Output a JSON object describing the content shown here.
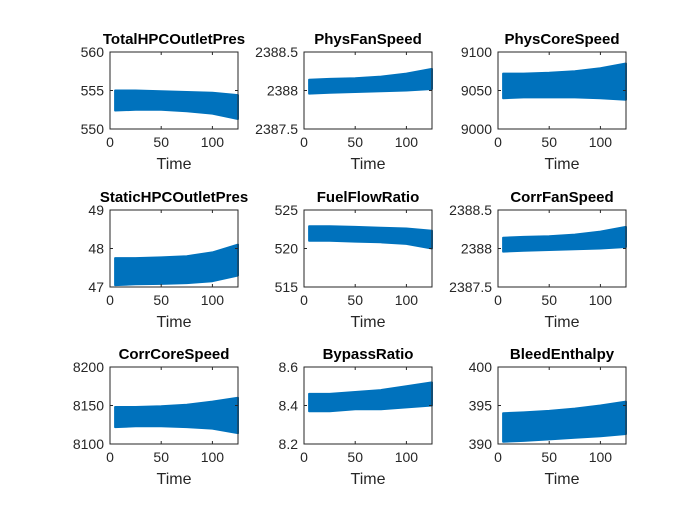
{
  "chart_data": [
    {
      "type": "area",
      "title": "TotalHPCOutletPres",
      "xlabel": "Time",
      "ylabel": "",
      "xlim": [
        0,
        125
      ],
      "ylim": [
        550,
        560
      ],
      "xticks": [
        0,
        50,
        100
      ],
      "yticks": [
        550,
        555,
        560
      ],
      "x": [
        5,
        25,
        50,
        75,
        100,
        125
      ],
      "band_low": [
        552.4,
        552.5,
        552.5,
        552.3,
        552.0,
        551.3
      ],
      "band_high": [
        555.0,
        555.0,
        554.9,
        554.8,
        554.7,
        554.4
      ],
      "color": "#0072BD"
    },
    {
      "type": "area",
      "title": "PhysFanSpeed",
      "xlabel": "Time",
      "ylabel": "",
      "xlim": [
        0,
        125
      ],
      "ylim": [
        2387.5,
        2388.5
      ],
      "xticks": [
        0,
        50,
        100
      ],
      "yticks": [
        2387.5,
        2388,
        2388.5
      ],
      "x": [
        5,
        25,
        50,
        75,
        100,
        125
      ],
      "band_low": [
        2387.96,
        2387.97,
        2387.98,
        2387.99,
        2388.0,
        2388.02
      ],
      "band_high": [
        2388.14,
        2388.15,
        2388.16,
        2388.18,
        2388.22,
        2388.28
      ],
      "color": "#0072BD"
    },
    {
      "type": "area",
      "title": "PhysCoreSpeed",
      "xlabel": "Time",
      "ylabel": "",
      "xlim": [
        0,
        125
      ],
      "ylim": [
        9000,
        9100
      ],
      "xticks": [
        0,
        50,
        100
      ],
      "yticks": [
        9000,
        9050,
        9100
      ],
      "x": [
        5,
        25,
        50,
        75,
        100,
        125
      ],
      "band_low": [
        9040,
        9041,
        9041,
        9041,
        9040,
        9038
      ],
      "band_high": [
        9072,
        9072,
        9073,
        9075,
        9079,
        9085
      ],
      "color": "#0072BD"
    },
    {
      "type": "area",
      "title": "StaticHPCOutletPres",
      "xlabel": "Time",
      "ylabel": "",
      "xlim": [
        0,
        125
      ],
      "ylim": [
        47,
        49
      ],
      "xticks": [
        0,
        50,
        100
      ],
      "yticks": [
        47,
        48,
        49
      ],
      "x": [
        5,
        25,
        50,
        75,
        100,
        125
      ],
      "band_low": [
        47.05,
        47.07,
        47.08,
        47.1,
        47.15,
        47.3
      ],
      "band_high": [
        47.75,
        47.75,
        47.77,
        47.8,
        47.9,
        48.1
      ],
      "color": "#0072BD"
    },
    {
      "type": "area",
      "title": "FuelFlowRatio",
      "xlabel": "Time",
      "ylabel": "",
      "xlim": [
        0,
        125
      ],
      "ylim": [
        515,
        525
      ],
      "xticks": [
        0,
        50,
        100
      ],
      "yticks": [
        515,
        520,
        525
      ],
      "x": [
        5,
        25,
        50,
        75,
        100,
        125
      ],
      "band_low": [
        521.0,
        521.0,
        520.9,
        520.8,
        520.6,
        520.0
      ],
      "band_high": [
        522.9,
        522.9,
        522.8,
        522.7,
        522.6,
        522.3
      ],
      "color": "#0072BD"
    },
    {
      "type": "area",
      "title": "CorrFanSpeed",
      "xlabel": "Time",
      "ylabel": "",
      "xlim": [
        0,
        125
      ],
      "ylim": [
        2387.5,
        2388.5
      ],
      "xticks": [
        0,
        50,
        100
      ],
      "yticks": [
        2387.5,
        2388,
        2388.5
      ],
      "x": [
        5,
        25,
        50,
        75,
        100,
        125
      ],
      "band_low": [
        2387.96,
        2387.97,
        2387.98,
        2387.99,
        2388.0,
        2388.02
      ],
      "band_high": [
        2388.14,
        2388.15,
        2388.16,
        2388.18,
        2388.22,
        2388.28
      ],
      "color": "#0072BD"
    },
    {
      "type": "area",
      "title": "CorrCoreSpeed",
      "xlabel": "Time",
      "ylabel": "",
      "xlim": [
        0,
        125
      ],
      "ylim": [
        8100,
        8200
      ],
      "xticks": [
        0,
        50,
        100
      ],
      "yticks": [
        8100,
        8150,
        8200
      ],
      "x": [
        5,
        25,
        50,
        75,
        100,
        125
      ],
      "band_low": [
        8122,
        8123,
        8123,
        8122,
        8120,
        8114
      ],
      "band_high": [
        8148,
        8148,
        8149,
        8151,
        8155,
        8160
      ],
      "color": "#0072BD"
    },
    {
      "type": "area",
      "title": "BypassRatio",
      "xlabel": "Time",
      "ylabel": "",
      "xlim": [
        0,
        125
      ],
      "ylim": [
        8.2,
        8.6
      ],
      "xticks": [
        0,
        50,
        100
      ],
      "yticks": [
        8.2,
        8.4,
        8.6
      ],
      "x": [
        5,
        25,
        50,
        75,
        100,
        125
      ],
      "band_low": [
        8.37,
        8.37,
        8.38,
        8.38,
        8.39,
        8.4
      ],
      "band_high": [
        8.46,
        8.46,
        8.47,
        8.48,
        8.5,
        8.52
      ],
      "color": "#0072BD"
    },
    {
      "type": "area",
      "title": "BleedEnthalpy",
      "xlabel": "Time",
      "ylabel": "",
      "xlim": [
        0,
        125
      ],
      "ylim": [
        390,
        400
      ],
      "xticks": [
        0,
        50,
        100
      ],
      "yticks": [
        390,
        395,
        400
      ],
      "x": [
        5,
        25,
        50,
        75,
        100,
        125
      ],
      "band_low": [
        390.3,
        390.4,
        390.6,
        390.8,
        391.0,
        391.3
      ],
      "band_high": [
        394.0,
        394.1,
        394.3,
        394.6,
        395.0,
        395.5
      ],
      "color": "#0072BD"
    }
  ]
}
